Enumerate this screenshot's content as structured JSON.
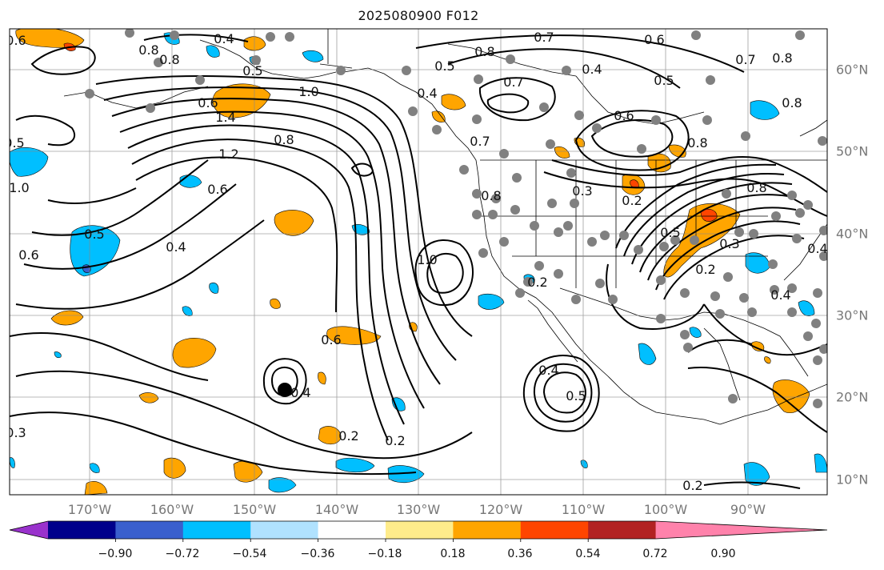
{
  "title": "2025080900 F012",
  "map": {
    "lon_labels": [
      "170°W",
      "160°W",
      "150°W",
      "140°W",
      "130°W",
      "120°W",
      "110°W",
      "100°W",
      "90°W"
    ],
    "lat_labels": [
      "60°N",
      "50°N",
      "40°N",
      "30°N",
      "20°N",
      "10°N"
    ],
    "contour_labels": [
      "1.0",
      "0.8",
      "0.4",
      "0.5",
      "1.0",
      "0.7",
      "0.8",
      "0.6",
      "0.7",
      "0.8",
      "0.5",
      "0.4",
      "0.7",
      "0.5",
      "0.8",
      "1.4",
      "1.2",
      "0.8",
      "0.6",
      "0.4",
      "0.5",
      "0.6",
      "0.6",
      "0.4",
      "0.3",
      "0.2",
      "0.2",
      "0.2",
      "1.0",
      "0.7",
      "0.8",
      "0.3",
      "0.2",
      "0.6",
      "0.8",
      "0.8",
      "0.5",
      "0.2",
      "0.3",
      "0.4",
      "0.4",
      "0.5",
      "0.4",
      "0.2",
      "0.5",
      "0.4",
      "0.6",
      "0.8",
      "0.6"
    ],
    "colors": {
      "contour": "#000000",
      "grid": "#888888",
      "dots": "#808080",
      "marker": "#000000"
    }
  },
  "colorbar": {
    "ticks": [
      "−0.90",
      "−0.72",
      "−0.54",
      "−0.36",
      "−0.18",
      "0.18",
      "0.36",
      "0.54",
      "0.72",
      "0.90"
    ],
    "colors": [
      "#9932cc",
      "#00008b",
      "#3a5fcd",
      "#00bfff",
      "#b0e2ff",
      "#ffffff",
      "#ffec8b",
      "#ffa500",
      "#ff4500",
      "#b22222",
      "#ff82ab"
    ]
  }
}
